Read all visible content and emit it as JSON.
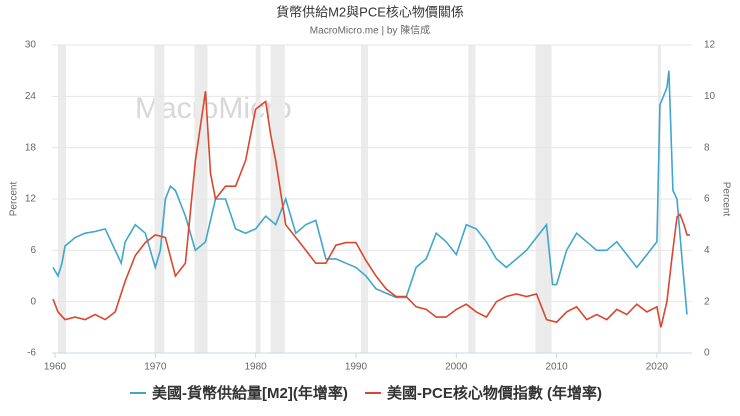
{
  "chart_data": {
    "type": "line",
    "title": "貨幣供給M2與PCE核心物價關係",
    "subtitle": "MacroMicro.me | by 陳信成",
    "watermark": "MacroMicro",
    "ylabel": "Percent",
    "y2label": "Percent",
    "xlim": [
      1959.7,
      2023.5
    ],
    "xticks": [
      1960,
      1970,
      1980,
      1990,
      2000,
      2010,
      2020
    ],
    "ylim": [
      -6,
      30
    ],
    "yticks": [
      -6,
      0,
      6,
      12,
      18,
      24,
      30
    ],
    "y2lim": [
      0,
      12
    ],
    "y2ticks": [
      0,
      2,
      4,
      6,
      8,
      10,
      12
    ],
    "grid": true,
    "legend": "bottom",
    "shaded_periods": [
      [
        1960.3,
        1961.1
      ],
      [
        1969.9,
        1970.9
      ],
      [
        1973.9,
        1975.2
      ],
      [
        1980.0,
        1980.5
      ],
      [
        1981.5,
        1982.9
      ],
      [
        1990.5,
        1991.2
      ],
      [
        2001.2,
        2001.9
      ],
      [
        2007.9,
        2009.5
      ],
      [
        2020.1,
        2020.4
      ]
    ],
    "shade_color": "#ebebeb",
    "series": [
      {
        "name": "美國-貨幣供給量[M2](年增率)",
        "color": "#41a6cc",
        "axis": "y",
        "x": [
          1959.8,
          1960.3,
          1960.7,
          1961,
          1962,
          1963,
          1964,
          1965,
          1966,
          1966.6,
          1967,
          1968,
          1969,
          1970,
          1970.5,
          1971,
          1971.5,
          1972,
          1973,
          1974,
          1975,
          1976,
          1977,
          1978,
          1979,
          1980,
          1981,
          1982,
          1983,
          1984,
          1985,
          1986,
          1987,
          1988,
          1989,
          1990,
          1991,
          1992,
          1993,
          1994,
          1995,
          1996,
          1997,
          1998,
          1999,
          2000,
          2001,
          2002,
          2003,
          2004,
          2005,
          2006,
          2007,
          2008,
          2009,
          2009.6,
          2010,
          2011,
          2012,
          2013,
          2014,
          2015,
          2016,
          2017,
          2018,
          2019,
          2020,
          2020.3,
          2021,
          2021.2,
          2021.6,
          2022,
          2022.5,
          2023
        ],
        "values": [
          4,
          3,
          4.5,
          6.5,
          7.5,
          8,
          8.2,
          8.5,
          6,
          4.5,
          7,
          9,
          8,
          4,
          6,
          12,
          13.5,
          13,
          10,
          6,
          7,
          12,
          12,
          8.5,
          8,
          8.5,
          10,
          9,
          12,
          8,
          9,
          9.5,
          5,
          5,
          4.5,
          4,
          3,
          1.5,
          1,
          0.5,
          0.5,
          4,
          5,
          8,
          7,
          5.5,
          9,
          8.5,
          7,
          5,
          4,
          5,
          6,
          7.5,
          9,
          2,
          2,
          6,
          8,
          7,
          6,
          6,
          7,
          5.5,
          4,
          5.5,
          7,
          23,
          25,
          27,
          13,
          12,
          5,
          -1.5
        ]
      },
      {
        "name": "美國-PCE核心物價指數 (年增率)",
        "color": "#d9472f",
        "axis": "y2",
        "x": [
          1959.8,
          1960.3,
          1961,
          1962,
          1963,
          1964,
          1965,
          1966,
          1967,
          1968,
          1969,
          1970,
          1971,
          1972,
          1973,
          1974,
          1975,
          1975.5,
          1976,
          1977,
          1978,
          1979,
          1980,
          1981,
          1981.5,
          1982,
          1983,
          1984,
          1985,
          1986,
          1987,
          1988,
          1989,
          1990,
          1991,
          1992,
          1993,
          1994,
          1995,
          1996,
          1997,
          1998,
          1999,
          2000,
          2001,
          2002,
          2003,
          2004,
          2005,
          2006,
          2007,
          2008,
          2009,
          2010,
          2011,
          2012,
          2013,
          2014,
          2015,
          2016,
          2017,
          2018,
          2019,
          2020,
          2020.4,
          2021,
          2021.5,
          2022,
          2022.3,
          2022.7,
          2023,
          2023.3
        ],
        "values": [
          2.1,
          1.6,
          1.3,
          1.4,
          1.3,
          1.5,
          1.3,
          1.6,
          2.8,
          3.8,
          4.3,
          4.6,
          4.5,
          3.0,
          3.5,
          7.5,
          10.2,
          7,
          6,
          6.5,
          6.5,
          7.5,
          9.5,
          9.8,
          8.5,
          7.5,
          5,
          4.5,
          4,
          3.5,
          3.5,
          4.2,
          4.3,
          4.3,
          3.6,
          3,
          2.5,
          2.2,
          2.2,
          1.8,
          1.7,
          1.4,
          1.4,
          1.7,
          1.9,
          1.6,
          1.4,
          2.0,
          2.2,
          2.3,
          2.2,
          2.3,
          1.3,
          1.2,
          1.6,
          1.8,
          1.3,
          1.5,
          1.3,
          1.7,
          1.5,
          1.9,
          1.6,
          1.8,
          1.0,
          2.0,
          3.7,
          5.3,
          5.4,
          5.0,
          4.6,
          4.6
        ]
      }
    ]
  }
}
